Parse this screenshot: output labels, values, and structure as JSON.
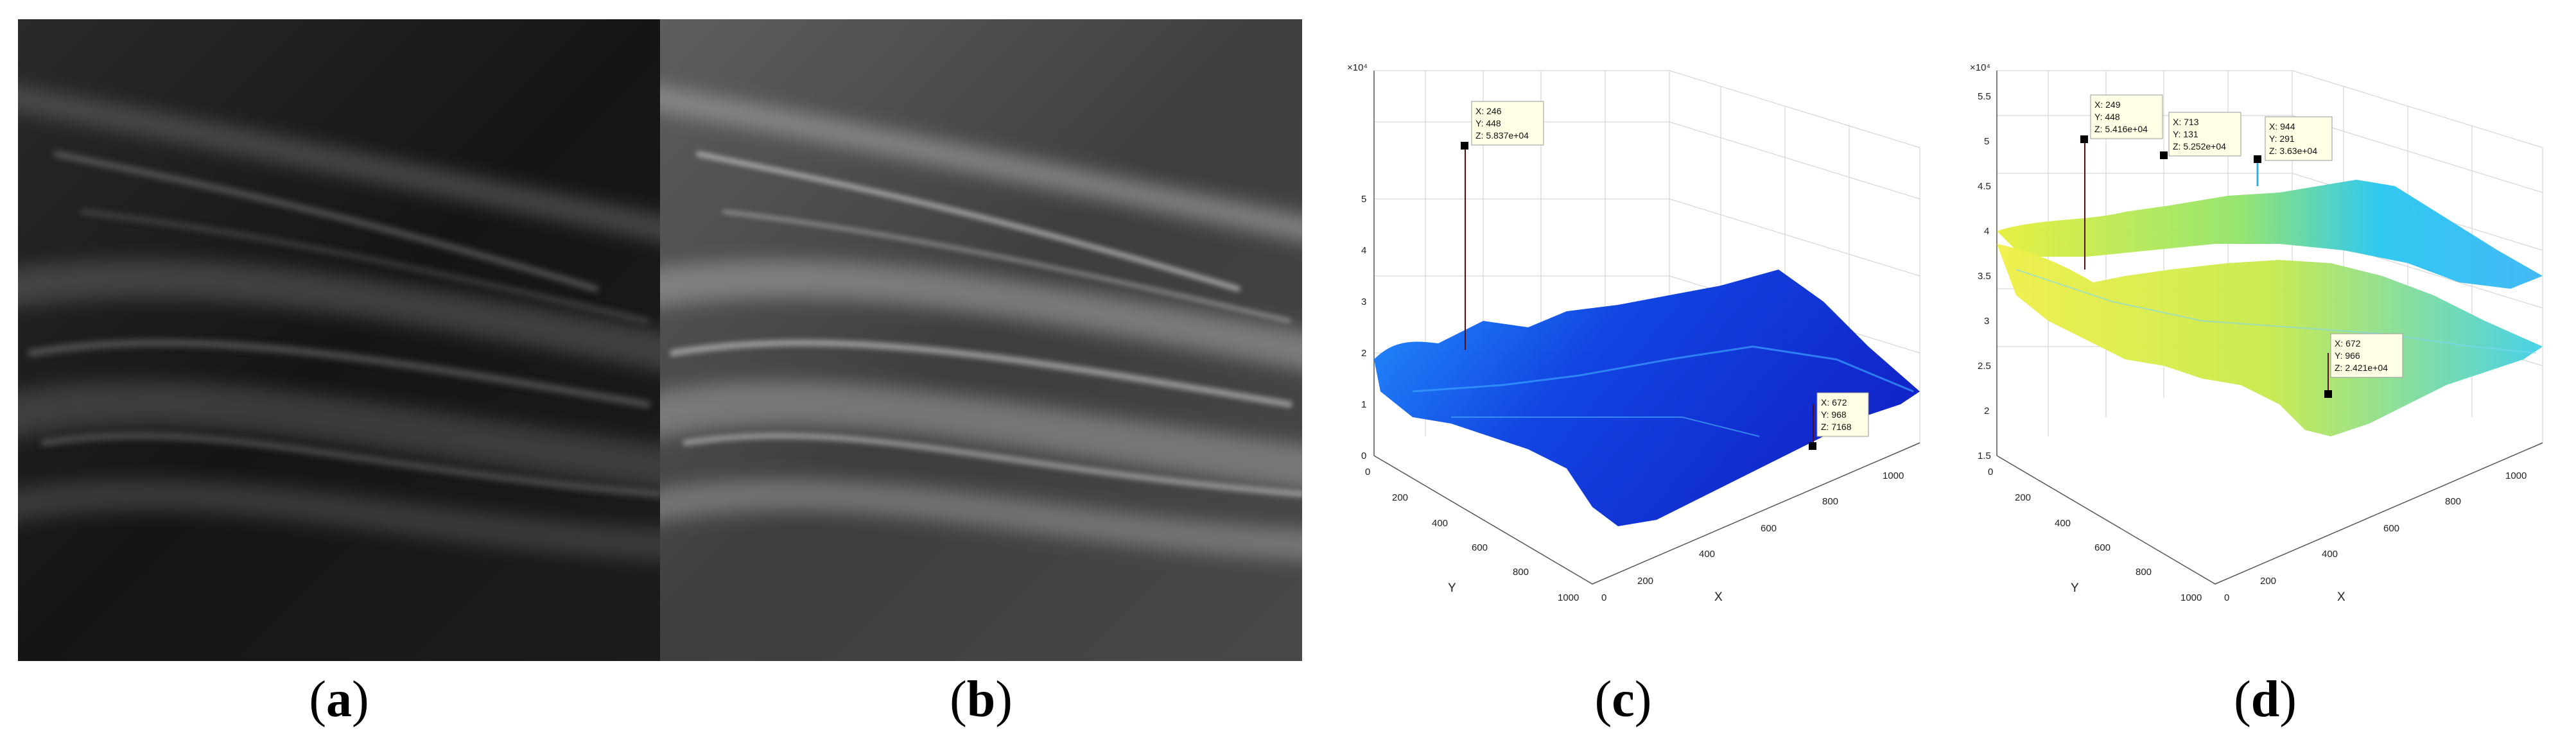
{
  "captions": [
    {
      "open": "(",
      "letter": "a",
      "close": ")"
    },
    {
      "open": "(",
      "letter": "b",
      "close": ")"
    },
    {
      "open": "(",
      "letter": "c",
      "close": ")"
    },
    {
      "open": "(",
      "letter": "d",
      "close": ")"
    }
  ],
  "panel_c": {
    "z_multiplier": "×10⁴",
    "z_ticks": [
      "0",
      "1",
      "2",
      "3",
      "4",
      "5"
    ],
    "x_ticks": [
      "0",
      "200",
      "400",
      "600",
      "800",
      "1000"
    ],
    "y_ticks": [
      "0",
      "200",
      "400",
      "600",
      "800",
      "1000"
    ],
    "x_label": "X",
    "y_label": "Y",
    "tooltips": [
      {
        "x": "X: 246",
        "y": "Y: 448",
        "z": "Z: 5.837e+04"
      },
      {
        "x": "X: 672",
        "y": "Y: 968",
        "z": "Z: 7168"
      }
    ]
  },
  "panel_d": {
    "z_multiplier": "×10⁴",
    "z_ticks": [
      "1.5",
      "2",
      "2.5",
      "3",
      "3.5",
      "4",
      "4.5",
      "5",
      "5.5"
    ],
    "x_ticks": [
      "0",
      "200",
      "400",
      "600",
      "800",
      "1000"
    ],
    "y_ticks": [
      "0",
      "200",
      "400",
      "600",
      "800",
      "1000"
    ],
    "x_label": "X",
    "y_label": "Y",
    "tooltips": [
      {
        "x": "X: 249",
        "y": "Y: 448",
        "z": "Z: 5.416e+04"
      },
      {
        "x": "X: 713",
        "y": "Y: 131",
        "z": "Z: 5.252e+04"
      },
      {
        "x": "X: 944",
        "y": "Y: 291",
        "z": "Z: 3.63e+04"
      },
      {
        "x": "X: 672",
        "y": "Y: 966",
        "z": "Z: 2.421e+04"
      }
    ]
  },
  "colors": {
    "surface_c_dark": "#0a1fc8",
    "surface_c_light": "#1e90ff",
    "surface_d_yellow": "#e6ef3a",
    "surface_d_cyan": "#26c6f0",
    "marker": "#000000"
  }
}
